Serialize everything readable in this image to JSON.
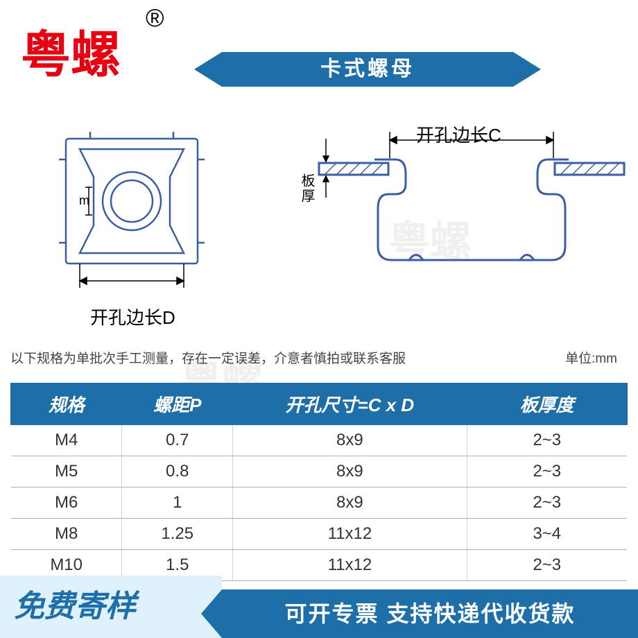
{
  "brand": "粤螺",
  "registered": "®",
  "title": "卡式螺母",
  "diagram": {
    "label_c": "开孔边长C",
    "label_d": "开孔边长D",
    "label_thickness": "板厚",
    "label_m": "m"
  },
  "watermark": "粤螺",
  "note": "以下规格为单批次手工测量，存在一定误差，介意者慎拍或联系客服",
  "unit": "单位:mm",
  "table": {
    "columns": [
      "规格",
      "螺距P",
      "开孔尺寸=C x D",
      "板厚度"
    ],
    "col_widths": [
      "18%",
      "18%",
      "38%",
      "26%"
    ],
    "rows": [
      [
        "M4",
        "0.7",
        "8x9",
        "2~3"
      ],
      [
        "M5",
        "0.8",
        "8x9",
        "2~3"
      ],
      [
        "M6",
        "1",
        "8x9",
        "2~3"
      ],
      [
        "M8",
        "1.25",
        "11x12",
        "3~4"
      ],
      [
        "M10",
        "1.5",
        "11x12",
        "2~3"
      ]
    ],
    "header_bg": "#1e6ea7",
    "header_fg": "#ffffff",
    "border_color": "#b0b0b0"
  },
  "footer": {
    "left": "免费寄样",
    "right": "可开专票 支持快递代收货款"
  },
  "colors": {
    "brand_red": "#e60012",
    "banner_blue": "#1e6ea7",
    "footer_light": "#dff2fb",
    "diagram_stroke": "#3a5fa0"
  }
}
